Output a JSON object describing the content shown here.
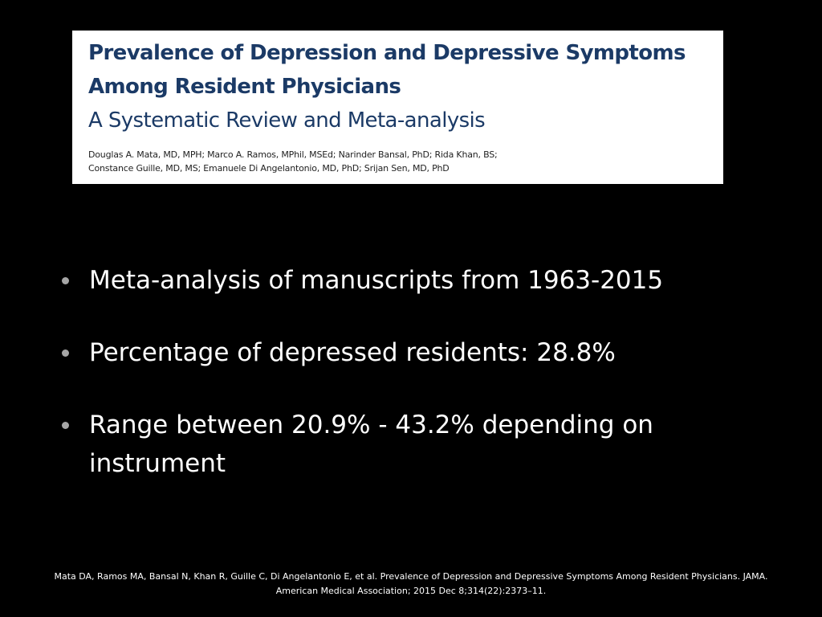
{
  "article": {
    "title_line1": "Prevalence of Depression and Depressive Symptoms",
    "title_line2": "Among Resident Physicians",
    "subtitle": "A Systematic Review and Meta-analysis",
    "authors_line1": "Douglas A. Mata, MD, MPH; Marco A. Ramos, MPhil, MSEd; Narinder Bansal, PhD; Rida Khan, BS;",
    "authors_line2": "Constance Guille, MD, MS; Emanuele Di Angelantonio, MD, PhD; Srijan Sen, MD, PhD"
  },
  "bullets": [
    "Meta-analysis of manuscripts from 1963-2015",
    "Percentage of depressed residents: 28.8%",
    "Range between 20.9% - 43.2% depending on instrument"
  ],
  "citation": "Mata DA, Ramos MA, Bansal N, Khan R, Guille C, Di Angelantonio E, et al. Prevalence of Depression and Depressive Symptoms Among Resident Physicians. JAMA. American Medical Association; 2015 Dec 8;314(22):2373–11.",
  "colors": {
    "background": "#000000",
    "title_color": "#1b3a66",
    "bullet_dot": "#a6a6a6",
    "text": "#ffffff"
  }
}
